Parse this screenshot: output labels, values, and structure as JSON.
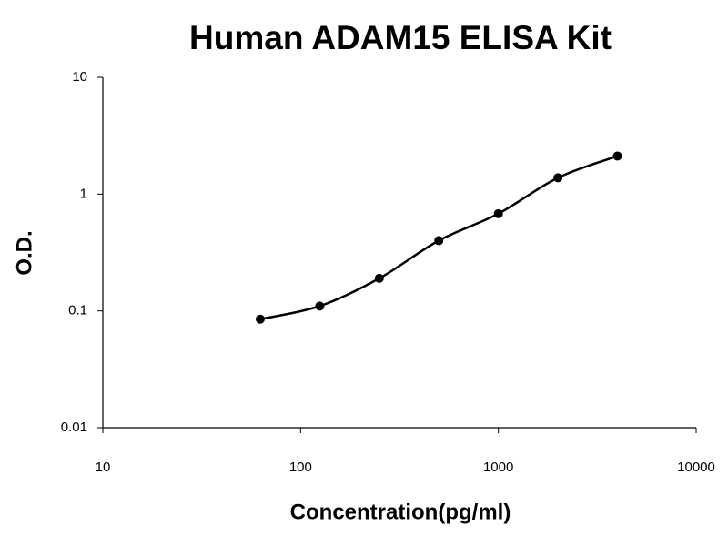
{
  "chart_data": {
    "type": "scatter",
    "title": "Human ADAM15 ELISA Kit",
    "x_label": "Concentration(pg/ml)",
    "y_label": "O.D.",
    "x": [
      62.5,
      125,
      250,
      500,
      1000,
      2000,
      4000
    ],
    "values": [
      0.085,
      0.11,
      0.19,
      0.4,
      0.68,
      1.38,
      2.12
    ],
    "color": "#000000",
    "line": true,
    "xscale": "log",
    "yscale": "log",
    "xlim": [
      10,
      10000
    ],
    "xticks": [
      10,
      100,
      1000,
      10000
    ],
    "ylim": [
      0.01,
      10
    ],
    "yticks": [
      0.01,
      0.1,
      1,
      10
    ]
  }
}
